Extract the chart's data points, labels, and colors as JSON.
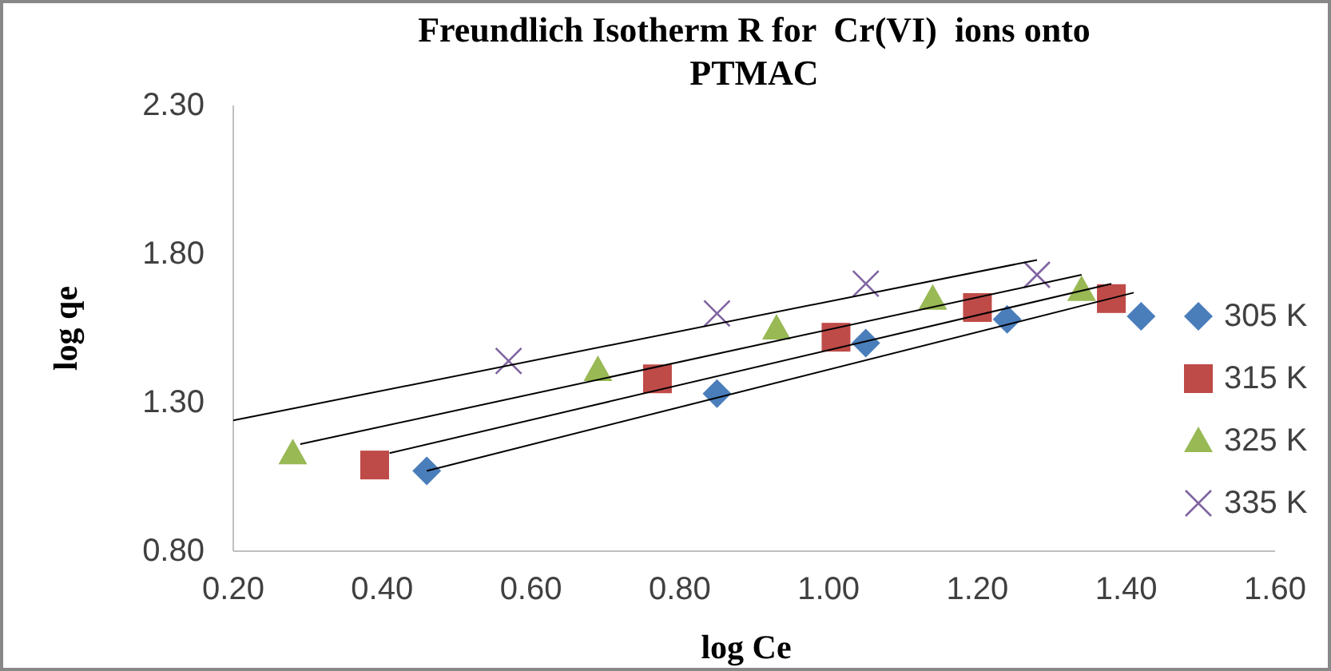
{
  "chart_data": {
    "type": "scatter",
    "title": "Freundlich Isotherm R for  Cr(VI)  ions onto PTMAC",
    "xlabel": "log Ce",
    "ylabel": "log qe",
    "xlim": [
      0.2,
      1.6
    ],
    "xticks": [
      {
        "value": 0.2,
        "label": "0.20"
      },
      {
        "value": 0.4,
        "label": "0.40"
      },
      {
        "value": 0.6,
        "label": "0.60"
      },
      {
        "value": 0.8,
        "label": "0.80"
      },
      {
        "value": 1.0,
        "label": "1.00"
      },
      {
        "value": 1.2,
        "label": "1.20"
      },
      {
        "value": 1.4,
        "label": "1.40"
      },
      {
        "value": 1.6,
        "label": "1.60"
      }
    ],
    "ylim": [
      0.8,
      2.3
    ],
    "yticks": [
      {
        "value": 0.8,
        "label": "0.80"
      },
      {
        "value": 1.3,
        "label": "1.30"
      },
      {
        "value": 1.8,
        "label": "1.80"
      },
      {
        "value": 2.3,
        "label": "2.30"
      }
    ],
    "grid": false,
    "legend": "right",
    "series": [
      {
        "name": "305 K",
        "marker": "diamond",
        "color": "#4a7ebb",
        "x": [
          0.46,
          0.85,
          1.05,
          1.24,
          1.42
        ],
        "values": [
          1.07,
          1.33,
          1.5,
          1.58,
          1.59
        ]
      },
      {
        "name": "315 K",
        "marker": "square",
        "color": "#be4b48",
        "x": [
          0.39,
          0.77,
          1.01,
          1.2,
          1.38
        ],
        "values": [
          1.09,
          1.38,
          1.52,
          1.62,
          1.65
        ]
      },
      {
        "name": "325 K",
        "marker": "triangle",
        "color": "#98b954",
        "x": [
          0.28,
          0.69,
          0.93,
          1.14,
          1.34
        ],
        "values": [
          1.13,
          1.41,
          1.55,
          1.65,
          1.68
        ]
      },
      {
        "name": "335 K",
        "marker": "cross",
        "color": "#8064a2",
        "x": [
          0.57,
          0.85,
          1.05,
          1.28
        ],
        "values": [
          1.44,
          1.6,
          1.7,
          1.73
        ]
      },
      {
        "type": "line",
        "marker": "none",
        "color": "#000000",
        "x": [
          0.46,
          1.41
        ],
        "values": [
          1.07,
          1.67
        ]
      },
      {
        "type": "line",
        "marker": "none",
        "color": "#000000",
        "x": [
          0.41,
          1.38
        ],
        "values": [
          1.13,
          1.7
        ]
      },
      {
        "type": "line",
        "marker": "none",
        "color": "#000000",
        "x": [
          0.29,
          1.34
        ],
        "values": [
          1.16,
          1.73
        ]
      },
      {
        "type": "line",
        "marker": "none",
        "color": "#000000",
        "x": [
          0.2,
          1.28
        ],
        "values": [
          1.24,
          1.78
        ]
      }
    ]
  }
}
